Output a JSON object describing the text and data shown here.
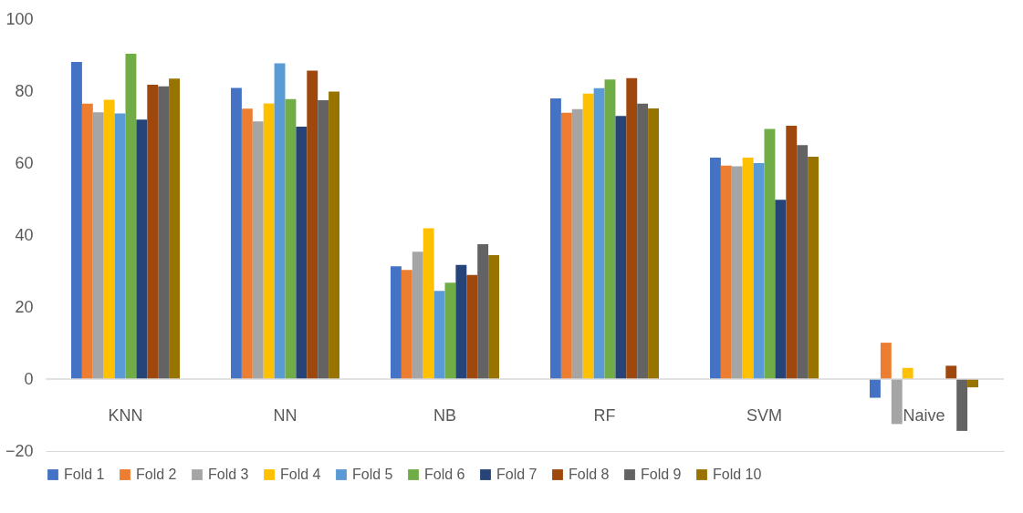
{
  "chart_data": {
    "type": "bar",
    "categories": [
      "KNN",
      "NN",
      "NB",
      "RF",
      "SVM",
      "Naive"
    ],
    "series": [
      {
        "name": "Fold 1",
        "color": "#4472c4",
        "values": [
          88.1,
          80.9,
          31.3,
          78.0,
          61.5,
          -5.2
        ]
      },
      {
        "name": "Fold 2",
        "color": "#ed7d31",
        "values": [
          76.5,
          75.1,
          30.3,
          74.0,
          59.3,
          10.1
        ]
      },
      {
        "name": "Fold 3",
        "color": "#a5a5a5",
        "values": [
          74.1,
          71.6,
          35.4,
          75.0,
          59.1,
          -12.5
        ]
      },
      {
        "name": "Fold 4",
        "color": "#ffc000",
        "values": [
          77.6,
          76.6,
          41.9,
          79.3,
          61.5,
          3.1
        ]
      },
      {
        "name": "Fold 5",
        "color": "#5b9bd5",
        "values": [
          73.8,
          87.7,
          24.5,
          80.8,
          60.0,
          0
        ]
      },
      {
        "name": "Fold 6",
        "color": "#70ad47",
        "values": [
          90.4,
          77.8,
          26.8,
          83.2,
          69.5,
          0
        ]
      },
      {
        "name": "Fold 7",
        "color": "#264478",
        "values": [
          72.1,
          70.1,
          31.7,
          73.1,
          49.8,
          0
        ]
      },
      {
        "name": "Fold 8",
        "color": "#9e480e",
        "values": [
          81.8,
          85.7,
          28.9,
          83.6,
          70.4,
          3.7
        ]
      },
      {
        "name": "Fold 9",
        "color": "#636363",
        "values": [
          81.3,
          77.5,
          37.5,
          76.5,
          65.0,
          -14.4
        ]
      },
      {
        "name": "Fold 10",
        "color": "#997300",
        "values": [
          83.5,
          79.9,
          34.4,
          75.2,
          61.8,
          -2.3
        ]
      }
    ],
    "ylim": [
      -20,
      100
    ],
    "yticks": [
      -20,
      0,
      20,
      40,
      60,
      80,
      100
    ],
    "grid": false,
    "legend": "bottom",
    "ref_lines": [
      {
        "axis": "y",
        "value": 0,
        "color": "#d9d9d9"
      }
    ]
  }
}
